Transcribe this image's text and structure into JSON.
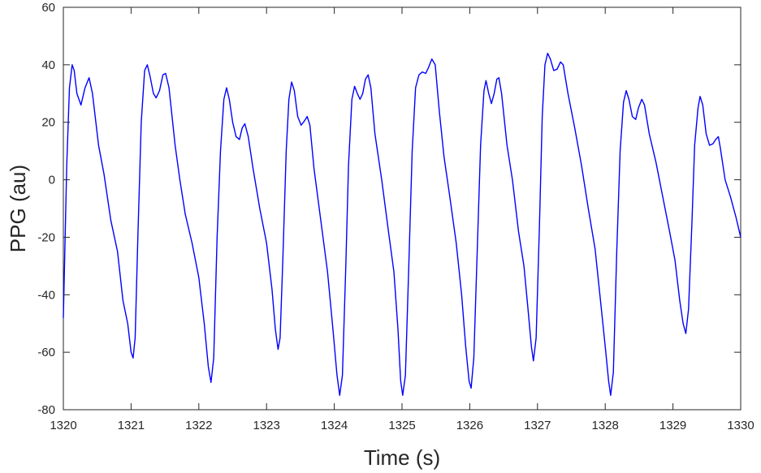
{
  "chart_data": {
    "type": "line",
    "xlabel": "Time (s)",
    "ylabel": "PPG (au)",
    "xlim": [
      1320,
      1330
    ],
    "ylim": [
      -80,
      60
    ],
    "xticks": [
      1320,
      1321,
      1322,
      1323,
      1324,
      1325,
      1326,
      1327,
      1328,
      1329,
      1330
    ],
    "yticks": [
      -80,
      -60,
      -40,
      -20,
      0,
      20,
      40,
      60
    ],
    "grid": false,
    "box": true,
    "line_color": "#0000ff",
    "series": [
      {
        "name": "",
        "points": [
          [
            1320.0,
            -48
          ],
          [
            1320.05,
            5
          ],
          [
            1320.09,
            32
          ],
          [
            1320.13,
            40
          ],
          [
            1320.16,
            38
          ],
          [
            1320.2,
            30
          ],
          [
            1320.26,
            26
          ],
          [
            1320.32,
            32
          ],
          [
            1320.38,
            35.5
          ],
          [
            1320.43,
            30
          ],
          [
            1320.52,
            12
          ],
          [
            1320.6,
            2
          ],
          [
            1320.7,
            -14
          ],
          [
            1320.8,
            -25
          ],
          [
            1320.88,
            -42
          ],
          [
            1320.95,
            -50
          ],
          [
            1321.0,
            -60
          ],
          [
            1321.03,
            -62
          ],
          [
            1321.06,
            -55
          ],
          [
            1321.1,
            -20
          ],
          [
            1321.15,
            20
          ],
          [
            1321.2,
            38
          ],
          [
            1321.24,
            40
          ],
          [
            1321.28,
            36
          ],
          [
            1321.33,
            30
          ],
          [
            1321.37,
            28.5
          ],
          [
            1321.42,
            31
          ],
          [
            1321.47,
            36.5
          ],
          [
            1321.51,
            37
          ],
          [
            1321.56,
            32
          ],
          [
            1321.65,
            12
          ],
          [
            1321.72,
            0
          ],
          [
            1321.8,
            -12
          ],
          [
            1321.9,
            -22
          ],
          [
            1322.0,
            -34
          ],
          [
            1322.08,
            -50
          ],
          [
            1322.14,
            -65
          ],
          [
            1322.18,
            -70.5
          ],
          [
            1322.22,
            -62
          ],
          [
            1322.27,
            -20
          ],
          [
            1322.32,
            10
          ],
          [
            1322.37,
            28
          ],
          [
            1322.41,
            32
          ],
          [
            1322.45,
            28
          ],
          [
            1322.5,
            20
          ],
          [
            1322.55,
            15
          ],
          [
            1322.6,
            14
          ],
          [
            1322.64,
            18
          ],
          [
            1322.68,
            19.5
          ],
          [
            1322.73,
            15
          ],
          [
            1322.8,
            4
          ],
          [
            1322.9,
            -10
          ],
          [
            1323.0,
            -22
          ],
          [
            1323.08,
            -38
          ],
          [
            1323.13,
            -52
          ],
          [
            1323.17,
            -59
          ],
          [
            1323.2,
            -55
          ],
          [
            1323.24,
            -28
          ],
          [
            1323.29,
            10
          ],
          [
            1323.33,
            28
          ],
          [
            1323.37,
            34
          ],
          [
            1323.41,
            31
          ],
          [
            1323.46,
            22
          ],
          [
            1323.51,
            19
          ],
          [
            1323.56,
            20.5
          ],
          [
            1323.6,
            22
          ],
          [
            1323.64,
            19
          ],
          [
            1323.7,
            4
          ],
          [
            1323.8,
            -14
          ],
          [
            1323.9,
            -32
          ],
          [
            1323.98,
            -52
          ],
          [
            1324.04,
            -68
          ],
          [
            1324.08,
            -75
          ],
          [
            1324.12,
            -68
          ],
          [
            1324.17,
            -30
          ],
          [
            1324.21,
            5
          ],
          [
            1324.26,
            28
          ],
          [
            1324.3,
            32.5
          ],
          [
            1324.34,
            30
          ],
          [
            1324.38,
            28
          ],
          [
            1324.42,
            30
          ],
          [
            1324.46,
            35
          ],
          [
            1324.5,
            36.5
          ],
          [
            1324.54,
            32
          ],
          [
            1324.6,
            16
          ],
          [
            1324.7,
            0
          ],
          [
            1324.8,
            -18
          ],
          [
            1324.88,
            -32
          ],
          [
            1324.94,
            -52
          ],
          [
            1324.98,
            -70
          ],
          [
            1325.01,
            -75
          ],
          [
            1325.05,
            -68
          ],
          [
            1325.1,
            -30
          ],
          [
            1325.15,
            10
          ],
          [
            1325.2,
            32
          ],
          [
            1325.25,
            36.5
          ],
          [
            1325.3,
            37.5
          ],
          [
            1325.35,
            37
          ],
          [
            1325.39,
            39
          ],
          [
            1325.44,
            42
          ],
          [
            1325.49,
            40
          ],
          [
            1325.55,
            24
          ],
          [
            1325.62,
            8
          ],
          [
            1325.7,
            -5
          ],
          [
            1325.8,
            -22
          ],
          [
            1325.88,
            -40
          ],
          [
            1325.94,
            -58
          ],
          [
            1325.99,
            -70
          ],
          [
            1326.02,
            -72.5
          ],
          [
            1326.06,
            -62
          ],
          [
            1326.11,
            -25
          ],
          [
            1326.16,
            12
          ],
          [
            1326.21,
            31
          ],
          [
            1326.24,
            34.5
          ],
          [
            1326.28,
            30
          ],
          [
            1326.32,
            26.5
          ],
          [
            1326.36,
            30
          ],
          [
            1326.4,
            35
          ],
          [
            1326.43,
            35.5
          ],
          [
            1326.47,
            30
          ],
          [
            1326.55,
            12
          ],
          [
            1326.63,
            0
          ],
          [
            1326.72,
            -18
          ],
          [
            1326.8,
            -30
          ],
          [
            1326.86,
            -45
          ],
          [
            1326.91,
            -58
          ],
          [
            1326.94,
            -63
          ],
          [
            1326.98,
            -55
          ],
          [
            1327.03,
            -15
          ],
          [
            1327.07,
            22
          ],
          [
            1327.11,
            40
          ],
          [
            1327.15,
            44
          ],
          [
            1327.19,
            42
          ],
          [
            1327.24,
            38
          ],
          [
            1327.29,
            38.5
          ],
          [
            1327.34,
            41
          ],
          [
            1327.38,
            40
          ],
          [
            1327.45,
            30
          ],
          [
            1327.55,
            18
          ],
          [
            1327.65,
            5
          ],
          [
            1327.75,
            -10
          ],
          [
            1327.85,
            -24
          ],
          [
            1327.93,
            -42
          ],
          [
            1328.0,
            -58
          ],
          [
            1328.05,
            -70
          ],
          [
            1328.08,
            -75
          ],
          [
            1328.12,
            -67
          ],
          [
            1328.17,
            -25
          ],
          [
            1328.22,
            10
          ],
          [
            1328.27,
            27
          ],
          [
            1328.31,
            31
          ],
          [
            1328.35,
            28
          ],
          [
            1328.4,
            22
          ],
          [
            1328.45,
            21
          ],
          [
            1328.49,
            25
          ],
          [
            1328.54,
            28
          ],
          [
            1328.58,
            26
          ],
          [
            1328.65,
            16
          ],
          [
            1328.75,
            6
          ],
          [
            1328.85,
            -6
          ],
          [
            1328.95,
            -18
          ],
          [
            1329.03,
            -28
          ],
          [
            1329.1,
            -42
          ],
          [
            1329.15,
            -50
          ],
          [
            1329.19,
            -53.5
          ],
          [
            1329.23,
            -45
          ],
          [
            1329.28,
            -15
          ],
          [
            1329.32,
            12
          ],
          [
            1329.37,
            25
          ],
          [
            1329.4,
            29
          ],
          [
            1329.44,
            26
          ],
          [
            1329.49,
            16
          ],
          [
            1329.54,
            12
          ],
          [
            1329.59,
            12.5
          ],
          [
            1329.63,
            14
          ],
          [
            1329.67,
            15
          ],
          [
            1329.7,
            11
          ],
          [
            1329.77,
            0
          ],
          [
            1329.85,
            -6
          ],
          [
            1329.93,
            -13
          ],
          [
            1330.0,
            -20
          ]
        ]
      }
    ]
  }
}
